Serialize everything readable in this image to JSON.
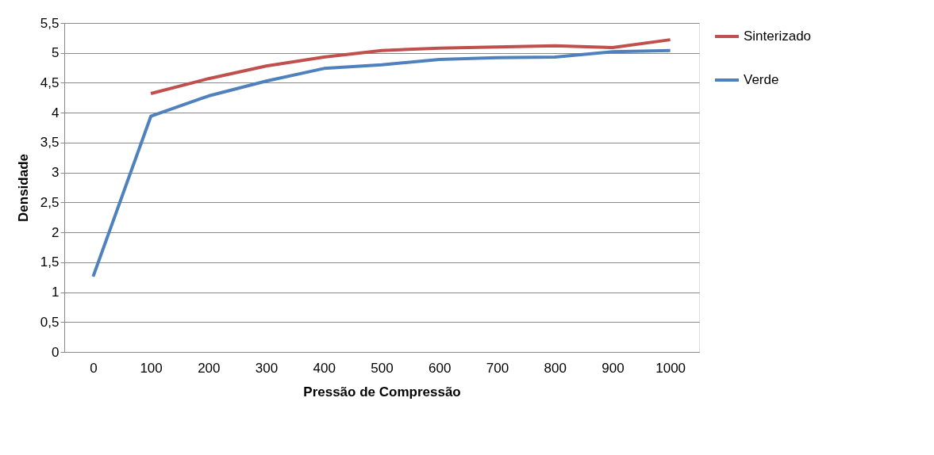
{
  "chart_data": {
    "type": "line",
    "xlabel": "Pressão de Compressão",
    "ylabel": "Densidade",
    "categories": [
      "0",
      "100",
      "200",
      "300",
      "400",
      "500",
      "600",
      "700",
      "800",
      "900",
      "1000"
    ],
    "series": [
      {
        "name": "Sinterizado",
        "color": "#c0504d",
        "values": [
          null,
          4.32,
          4.57,
          4.78,
          4.93,
          5.04,
          5.08,
          5.1,
          5.12,
          5.09,
          5.22
        ]
      },
      {
        "name": "Verde",
        "color": "#4f81bd",
        "values": [
          1.26,
          3.94,
          4.28,
          4.53,
          4.74,
          4.8,
          4.89,
          4.92,
          4.93,
          5.02,
          5.04
        ]
      }
    ],
    "ylim": [
      0,
      5.5
    ],
    "yticks": [
      0,
      {
        "value": 0.5,
        "label": "0,5"
      },
      1,
      {
        "value": 1.5,
        "label": "1,5"
      },
      2,
      {
        "value": 2.5,
        "label": "2,5"
      },
      3,
      {
        "value": 3.5,
        "label": "3,5"
      },
      4,
      {
        "value": 4.5,
        "label": "4,5"
      },
      5,
      {
        "value": 5.5,
        "label": "5,5"
      }
    ],
    "grid": "y",
    "legend": "right",
    "marker": "none",
    "line_style": "solid"
  }
}
